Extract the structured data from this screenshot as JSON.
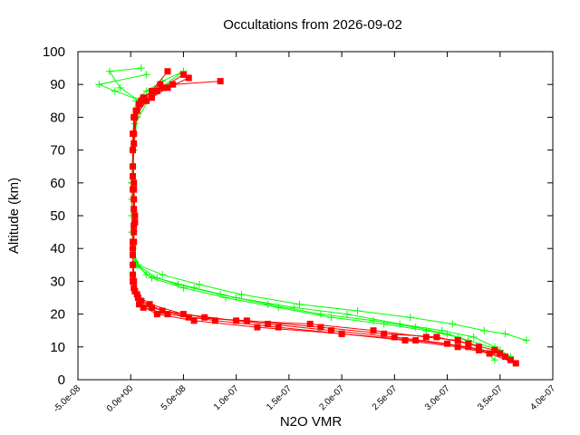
{
  "chart_data": {
    "type": "scatter",
    "title": "Occultations from 2026-09-02",
    "xlabel": "N2O VMR",
    "ylabel": "Altitude (km)",
    "xlim": [
      -5e-08,
      4e-07
    ],
    "ylim": [
      0,
      100
    ],
    "x_ticks": [
      -5e-08,
      0,
      5e-08,
      1e-07,
      1.5e-07,
      2e-07,
      2.5e-07,
      3e-07,
      3.5e-07,
      4e-07
    ],
    "x_tick_labels": [
      "-5.0e-08",
      "0.0e+00",
      "5.0e-08",
      "1.0e-07",
      "1.5e-07",
      "2.0e-07",
      "2.5e-07",
      "3.0e-07",
      "3.5e-07",
      "4.0e-07"
    ],
    "y_ticks": [
      0,
      10,
      20,
      30,
      40,
      50,
      60,
      70,
      80,
      90,
      100
    ],
    "y_tick_labels": [
      "0",
      "10",
      "20",
      "30",
      "40",
      "50",
      "60",
      "70",
      "80",
      "90",
      "100"
    ],
    "grid": false,
    "legend": "none",
    "series": [
      {
        "color": "#00ff00",
        "marker": "plus",
        "profiles": [
          {
            "x": [
              3.45e-07,
              3.3e-07,
              3.1e-07,
              2.8e-07,
              2.4e-07,
              1.9e-07,
              1.4e-07,
              9e-08,
              5e-08,
              2e-08,
              5e-09,
              2e-09,
              1e-09,
              1e-09,
              2e-09,
              3e-09,
              5e-09,
              1.5e-08,
              3e-08,
              5e-08
            ],
            "y": [
              6,
              10,
              13,
              15,
              17,
              19,
              22,
              25,
              28,
              31,
              35,
              40,
              50,
              60,
              70,
              80,
              85,
              88,
              91,
              94
            ]
          },
          {
            "x": [
              3.6e-07,
              3.45e-07,
              3.25e-07,
              2.95e-07,
              2.55e-07,
              2.05e-07,
              1.55e-07,
              1e-07,
              6e-08,
              2.5e-08,
              6e-09,
              2e-09,
              1e-09,
              1e-09,
              2e-09,
              4e-09,
              8e-09,
              -1e-08,
              -2e-08,
              1e-08
            ],
            "y": [
              7,
              10,
              13,
              15,
              17,
              20,
              22,
              25,
              28,
              31,
              35,
              40,
              50,
              60,
              70,
              80,
              85,
              89,
              94,
              95
            ]
          },
          {
            "x": [
              3.75e-07,
              3.55e-07,
              3.35e-07,
              3.05e-07,
              2.65e-07,
              2.15e-07,
              1.6e-07,
              1.05e-07,
              6.5e-08,
              3e-08,
              7e-09,
              2e-09,
              1e-09,
              1e-09,
              3e-09,
              6e-09,
              1e-08,
              -1.5e-08,
              -3e-08,
              1.5e-08
            ],
            "y": [
              12,
              14,
              15,
              17,
              19,
              21,
              23,
              26,
              29,
              32,
              35,
              40,
              50,
              60,
              70,
              80,
              85,
              88,
              90,
              93
            ]
          },
          {
            "x": [
              3.5e-07,
              3.2e-07,
              3e-07,
              2.7e-07,
              2.3e-07,
              1.8e-07,
              1.3e-07,
              8.5e-08,
              4.5e-08,
              1.5e-08,
              4e-09,
              1e-09,
              1e-09,
              2e-09,
              4e-09,
              2e-08,
              5e-08
            ],
            "y": [
              9,
              12,
              14,
              16,
              18,
              20,
              23,
              26,
              29,
              32,
              36,
              45,
              55,
              65,
              78,
              87,
              94
            ]
          }
        ]
      },
      {
        "color": "#ff0000",
        "marker": "square",
        "profiles": [
          {
            "x": [
              3.6e-07,
              3.5e-07,
              3.2e-07,
              2.7e-07,
              2e-07,
              1.2e-07,
              6e-08,
              2.5e-08,
              8e-09,
              3e-09,
              2e-09,
              3e-09,
              4e-09,
              3e-09,
              2e-09,
              3e-09,
              1e-08,
              2.5e-08,
              4e-08,
              8.5e-08
            ],
            "y": [
              6,
              8,
              10,
              12,
              14,
              16,
              18,
              20,
              23,
              28,
              35,
              42,
              50,
              60,
              70,
              80,
              85,
              88,
              90,
              91
            ]
          },
          {
            "x": [
              3.55e-07,
              3.3e-07,
              3e-07,
              2.5e-07,
              1.9e-07,
              1.3e-07,
              7e-08,
              3e-08,
              1e-08,
              3e-09,
              2e-09,
              4e-09,
              3e-09,
              2e-09,
              2e-09,
              5e-09,
              2e-08,
              3.5e-08,
              5.5e-08
            ],
            "y": [
              7,
              9,
              11,
              13,
              15,
              17,
              19,
              21,
              24,
              30,
              40,
              48,
              55,
              65,
              75,
              82,
              86,
              89,
              92
            ]
          },
          {
            "x": [
              3.65e-07,
              3.4e-07,
              3.1e-07,
              2.6e-07,
              2e-07,
              1.4e-07,
              8e-08,
              3.5e-08,
              1.2e-08,
              4e-09,
              2e-09,
              3e-09,
              3e-09,
              2e-09,
              4e-09,
              1.5e-08,
              3e-08,
              5e-08
            ],
            "y": [
              5,
              8,
              10,
              12,
              14,
              16,
              18,
              20,
              22,
              27,
              38,
              47,
              58,
              70,
              80,
              85,
              89,
              93
            ]
          },
          {
            "x": [
              3.45e-07,
              3.2e-07,
              2.9e-07,
              2.4e-07,
              1.8e-07,
              1.1e-07,
              5.5e-08,
              2e-08,
              7e-09,
              2e-09,
              2e-09,
              3e-09,
              2e-09,
              3e-09,
              8e-09,
              2e-08,
              3.5e-08
            ],
            "y": [
              9,
              11,
              13,
              14,
              16,
              18,
              19,
              22,
              25,
              30,
              42,
              52,
              62,
              75,
              84,
              88,
              94
            ]
          },
          {
            "x": [
              3.3e-07,
              3.1e-07,
              2.8e-07,
              2.3e-07,
              1.7e-07,
              1e-07,
              5e-08,
              1.8e-08,
              6e-09,
              2e-09,
              3e-09,
              2e-09,
              3e-09,
              6e-09,
              1.2e-08,
              2.8e-08
            ],
            "y": [
              10,
              12,
              13,
              15,
              17,
              18,
              20,
              23,
              26,
              32,
              45,
              58,
              72,
              82,
              86,
              90
            ]
          }
        ]
      }
    ]
  }
}
